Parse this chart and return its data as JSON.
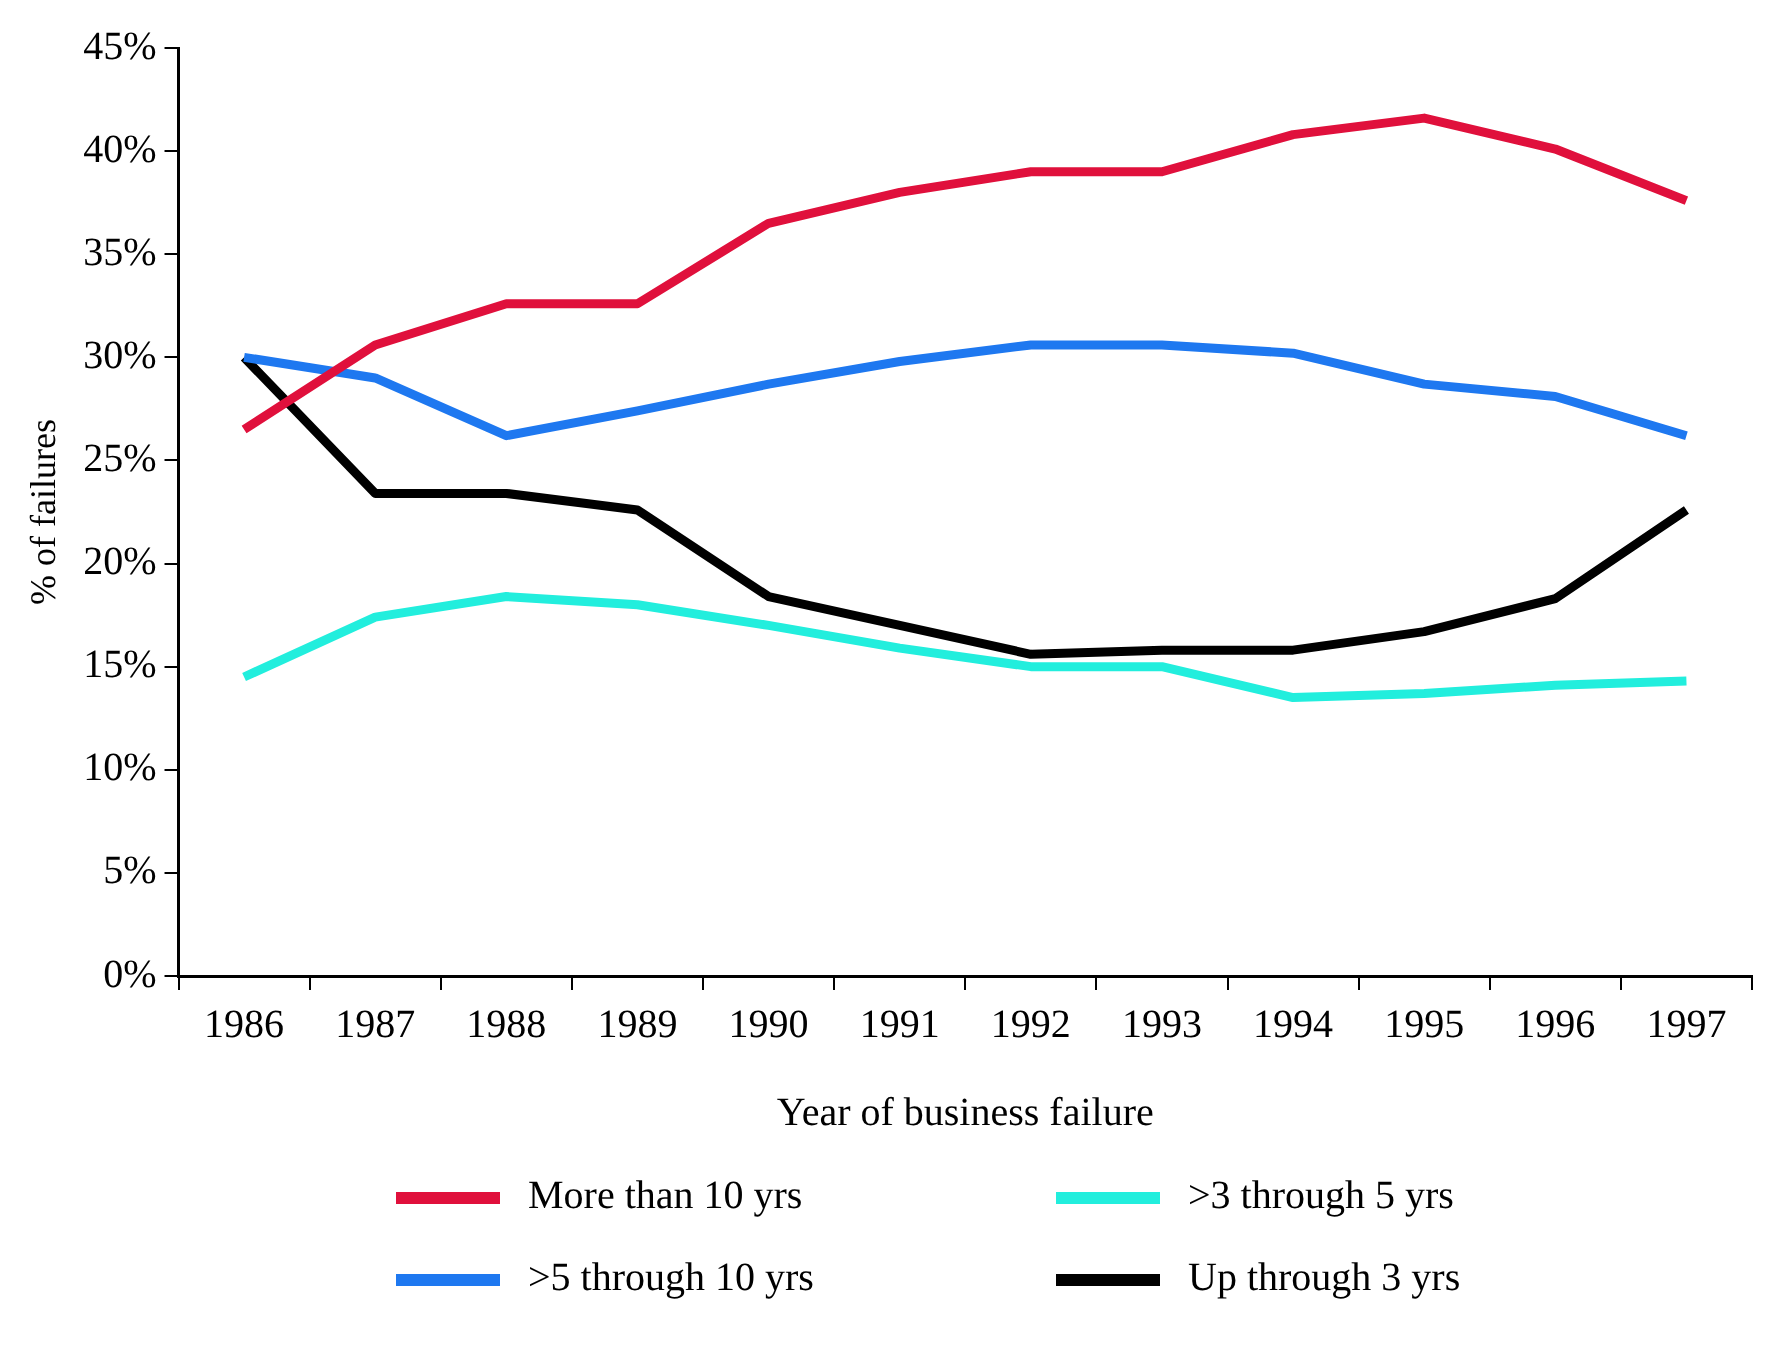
{
  "chart_data": {
    "type": "line",
    "xlabel": "Year of business failure",
    "ylabel": "% of failures",
    "categories": [
      "1986",
      "1987",
      "1988",
      "1989",
      "1990",
      "1991",
      "1992",
      "1993",
      "1994",
      "1995",
      "1996",
      "1997"
    ],
    "series": [
      {
        "name": "More than 10 yrs",
        "color": "#e0103c",
        "values": [
          26.5,
          30.6,
          32.6,
          32.6,
          36.5,
          38,
          39,
          39,
          40.8,
          41.6,
          40.1,
          37.6
        ]
      },
      {
        "name": ">3 through 5 yrs",
        "color": "#22eedd",
        "values": [
          14.5,
          17.4,
          18.4,
          18,
          17,
          15.9,
          15,
          15,
          13.5,
          13.7,
          14.1,
          14.3
        ]
      },
      {
        "name": ">5 through 10 yrs",
        "color": "#1e78f0",
        "values": [
          30,
          29,
          26.2,
          27.4,
          28.7,
          29.8,
          30.6,
          30.6,
          30.2,
          28.7,
          28.1,
          26.2
        ]
      },
      {
        "name": "Up through 3 yrs",
        "color": "#000000",
        "values": [
          30,
          23.4,
          23.4,
          22.6,
          18.4,
          17,
          15.6,
          15.8,
          15.8,
          16.7,
          18.3,
          22.6
        ]
      }
    ],
    "ylim": [
      0,
      45
    ],
    "yticks": [
      {
        "value": 0,
        "label": "0%"
      },
      {
        "value": 5,
        "label": "5%"
      },
      {
        "value": 10,
        "label": "10%"
      },
      {
        "value": 15,
        "label": "15%"
      },
      {
        "value": 20,
        "label": "20%"
      },
      {
        "value": 25,
        "label": "25%"
      },
      {
        "value": 30,
        "label": "30%"
      },
      {
        "value": 35,
        "label": "35%"
      },
      {
        "value": 40,
        "label": "40%"
      },
      {
        "value": 45,
        "label": "45%"
      }
    ],
    "grid": false,
    "legend": "bottom",
    "marker": "none",
    "line_style": "solid"
  }
}
